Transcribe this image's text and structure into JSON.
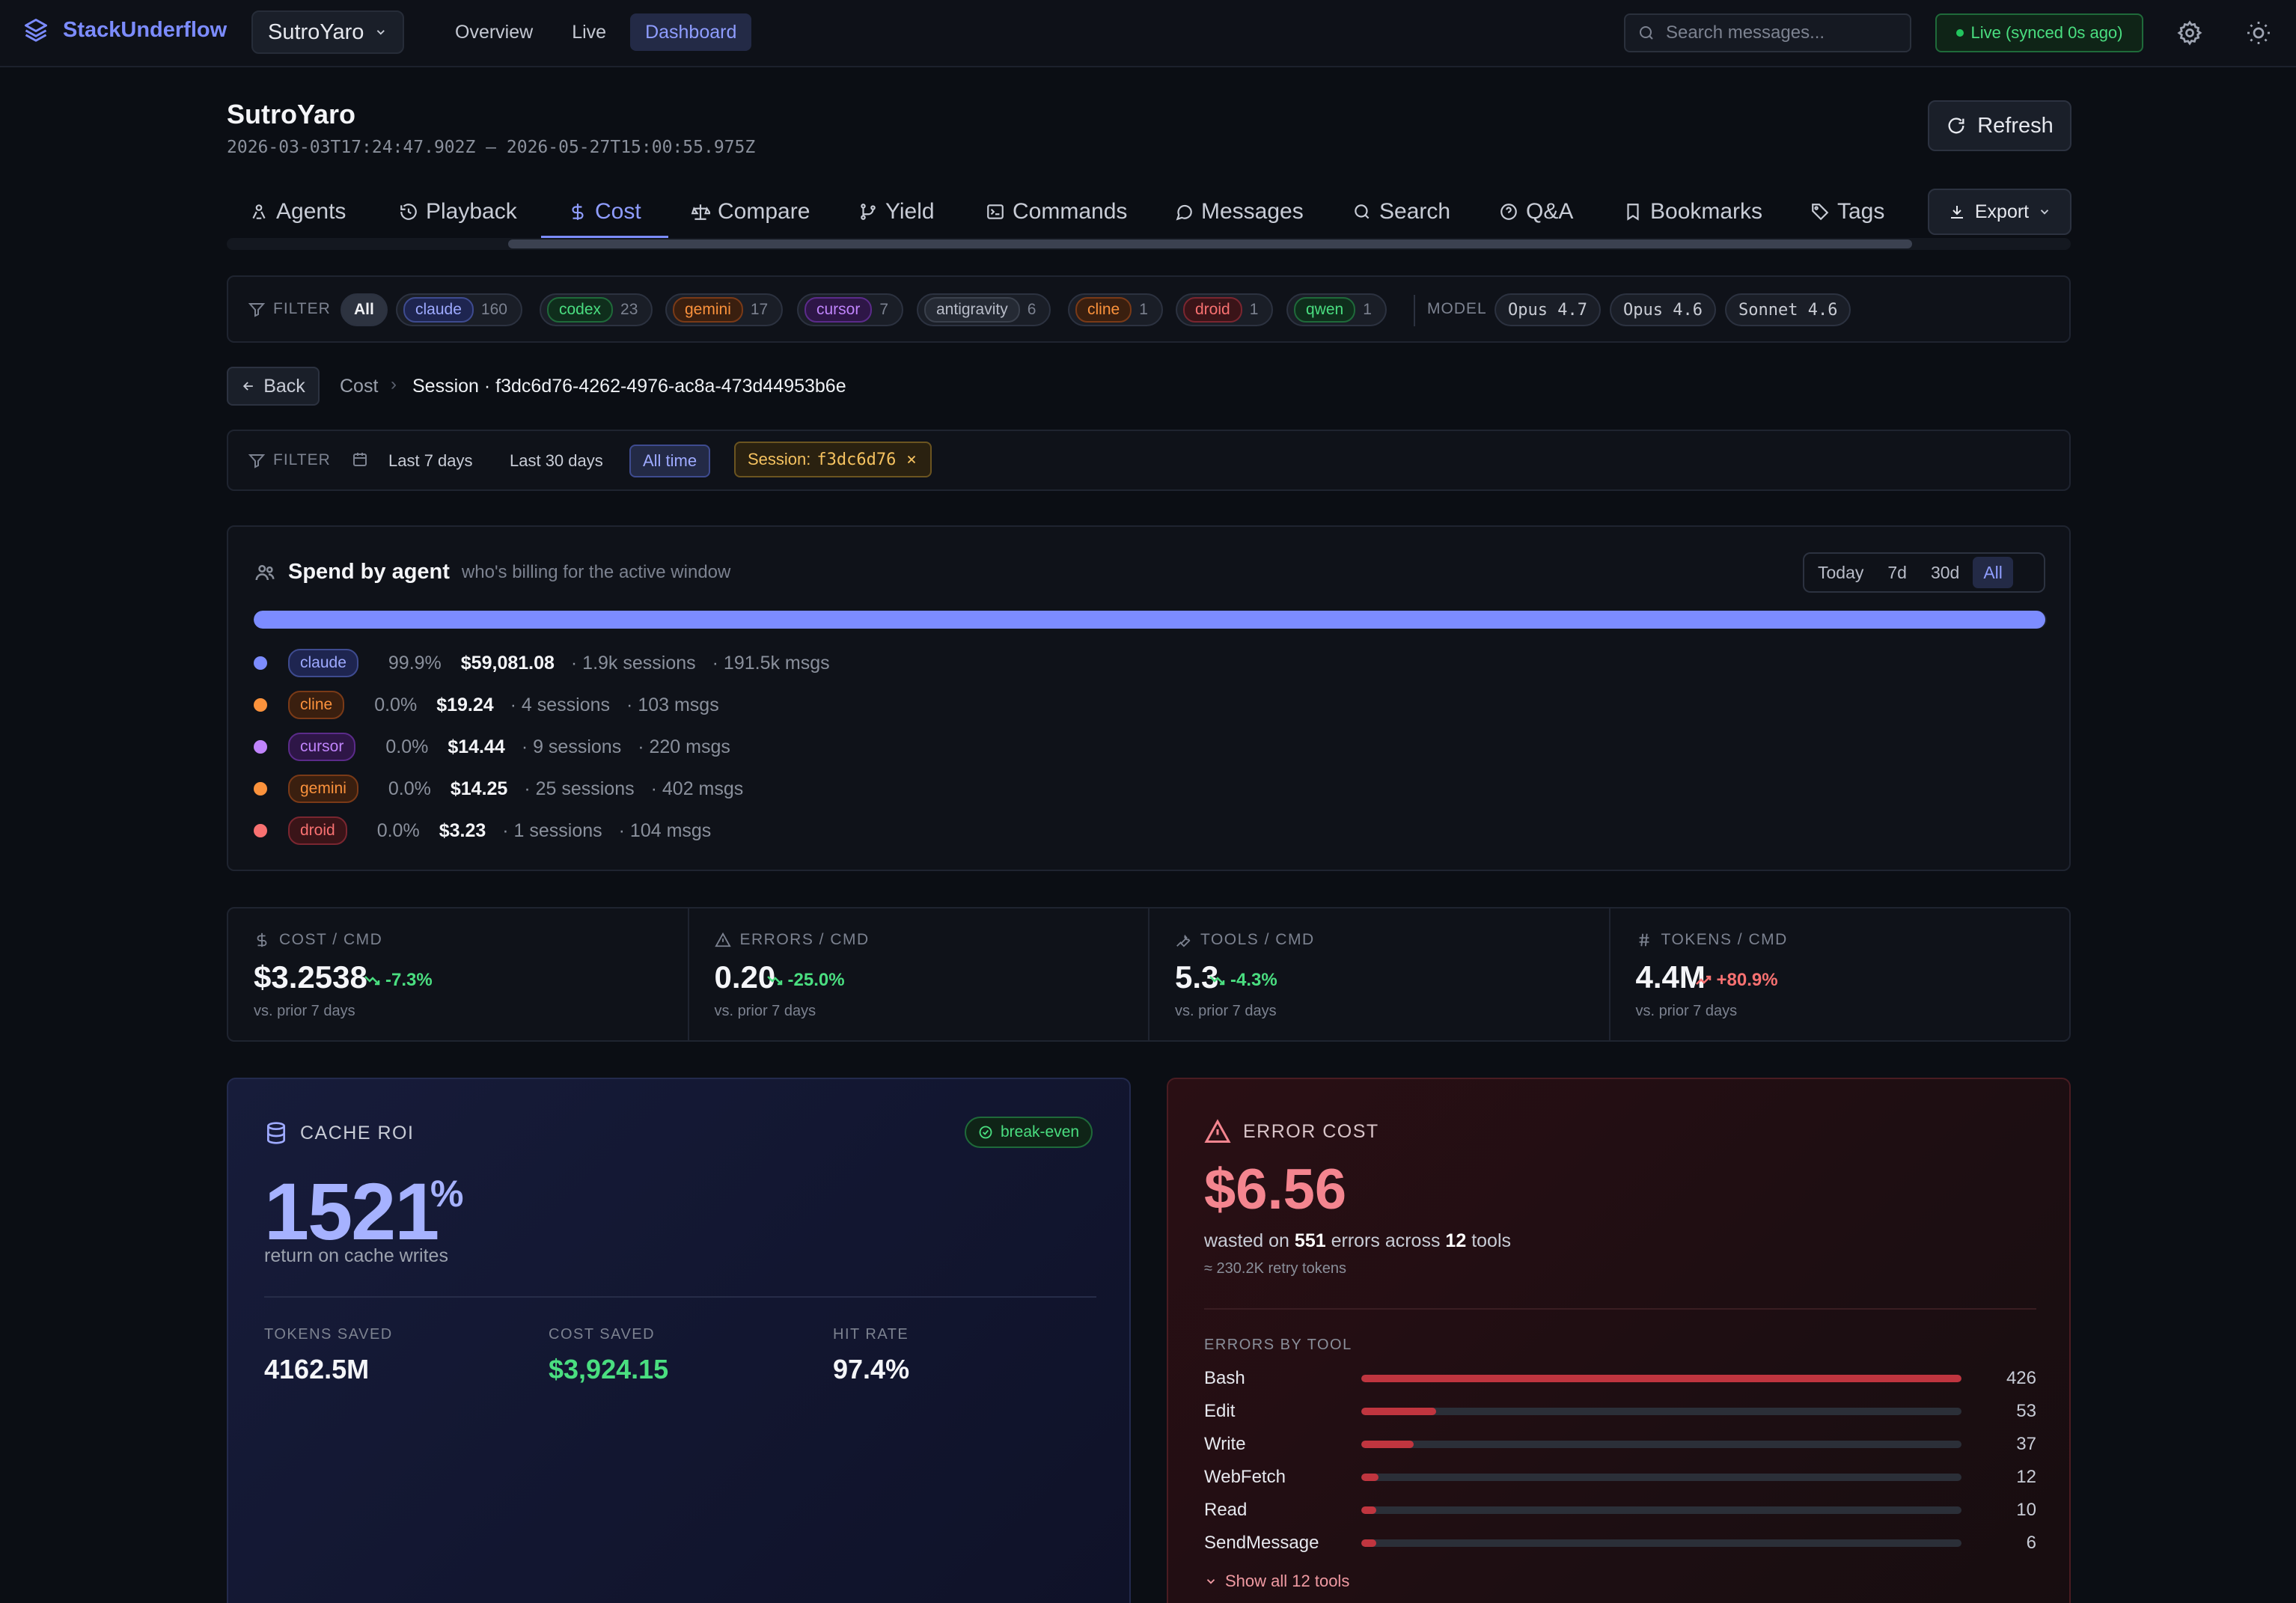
{
  "app": {
    "brand": "StackUnderflow",
    "workspace": "SutroYaro",
    "nav": [
      "Overview",
      "Live",
      "Dashboard"
    ],
    "active_nav": "Dashboard",
    "search_placeholder": "Search messages...",
    "live_status": "Live (synced 0s ago)"
  },
  "page": {
    "title": "SutroYaro",
    "date_range": "2026-03-03T17:24:47.902Z — 2026-05-27T15:00:55.975Z",
    "refresh_label": "Refresh",
    "export_label": "Export",
    "tabs": [
      {
        "label": "Agents",
        "icon": "agents-icon"
      },
      {
        "label": "Playback",
        "icon": "history-icon"
      },
      {
        "label": "Cost",
        "icon": "dollar-icon"
      },
      {
        "label": "Compare",
        "icon": "scale-icon"
      },
      {
        "label": "Yield",
        "icon": "branch-icon"
      },
      {
        "label": "Commands",
        "icon": "terminal-icon"
      },
      {
        "label": "Messages",
        "icon": "chat-icon"
      },
      {
        "label": "Search",
        "icon": "search-icon"
      },
      {
        "label": "Q&A",
        "icon": "question-icon"
      },
      {
        "label": "Bookmarks",
        "icon": "bookmark-icon"
      },
      {
        "label": "Tags",
        "icon": "tag-icon"
      }
    ],
    "active_tab": "Cost"
  },
  "agent_filter": {
    "label": "FILTER",
    "all_label": "All",
    "agents": [
      {
        "name": "claude",
        "count": "160",
        "color": "#7c8cff"
      },
      {
        "name": "codex",
        "count": "23",
        "color": "#4ade80"
      },
      {
        "name": "gemini",
        "count": "17",
        "color": "#fb923c"
      },
      {
        "name": "cursor",
        "count": "7",
        "color": "#c084fc"
      },
      {
        "name": "antigravity",
        "count": "6",
        "color": "#a0a6b4"
      },
      {
        "name": "cline",
        "count": "1",
        "color": "#fb923c"
      },
      {
        "name": "droid",
        "count": "1",
        "color": "#f87171"
      },
      {
        "name": "qwen",
        "count": "1",
        "color": "#4ade80"
      }
    ],
    "model_label": "MODEL",
    "models": [
      "Opus 4.7",
      "Opus 4.6",
      "Sonnet 4.6"
    ]
  },
  "breadcrumb": {
    "back_label": "Back",
    "parent": "Cost",
    "current": "Session · f3dc6d76-4262-4976-ac8a-473d44953b6e"
  },
  "time_filter": {
    "label": "FILTER",
    "ranges": [
      "Last 7 days",
      "Last 30 days",
      "All time"
    ],
    "active_range": "All time",
    "session_chip_label": "Session:",
    "session_chip_value": "f3dc6d76"
  },
  "spend": {
    "title": "Spend by agent",
    "subtitle": "who's billing for the active window",
    "periods": [
      "Today",
      "7d",
      "30d",
      "All"
    ],
    "active_period": "All",
    "bar_fraction": 0.999,
    "rows": [
      {
        "agent": "claude",
        "pct": "99.9%",
        "amount": "$59,081.08",
        "sessions": "· 1.9k sessions",
        "msgs": "· 191.5k msgs",
        "color": "#7c8cff"
      },
      {
        "agent": "cline",
        "pct": "0.0%",
        "amount": "$19.24",
        "sessions": "· 4 sessions",
        "msgs": "· 103 msgs",
        "color": "#fb923c"
      },
      {
        "agent": "cursor",
        "pct": "0.0%",
        "amount": "$14.44",
        "sessions": "· 9 sessions",
        "msgs": "· 220 msgs",
        "color": "#c084fc"
      },
      {
        "agent": "gemini",
        "pct": "0.0%",
        "amount": "$14.25",
        "sessions": "· 25 sessions",
        "msgs": "· 402 msgs",
        "color": "#fb923c"
      },
      {
        "agent": "droid",
        "pct": "0.0%",
        "amount": "$3.23",
        "sessions": "· 1 sessions",
        "msgs": "· 104 msgs",
        "color": "#f87171"
      }
    ]
  },
  "kpis": [
    {
      "label": "COST / CMD",
      "icon": "dollar-icon",
      "value": "$3.2538",
      "delta": "-7.3%",
      "trend": "down",
      "sub": "vs. prior 7 days",
      "delta_color": "#4ade80"
    },
    {
      "label": "ERRORS / CMD",
      "icon": "warning-icon",
      "value": "0.20",
      "delta": "-25.0%",
      "trend": "down",
      "sub": "vs. prior 7 days",
      "delta_color": "#4ade80"
    },
    {
      "label": "TOOLS / CMD",
      "icon": "wrench-icon",
      "value": "5.3",
      "delta": "-4.3%",
      "trend": "down",
      "sub": "vs. prior 7 days",
      "delta_color": "#4ade80"
    },
    {
      "label": "TOKENS / CMD",
      "icon": "hash-icon",
      "value": "4.4M",
      "delta": "+80.9%",
      "trend": "up",
      "sub": "vs. prior 7 days",
      "delta_color": "#f87171"
    }
  ],
  "cache_roi": {
    "title": "CACHE ROI",
    "badge": "break-even",
    "value": "1521",
    "unit": "%",
    "description": "return on cache writes",
    "stats": [
      {
        "label": "TOKENS SAVED",
        "value": "4162.5M",
        "color": "#f4f5f8"
      },
      {
        "label": "COST SAVED",
        "value": "$3,924.15",
        "color": "#4ade80"
      },
      {
        "label": "HIT RATE",
        "value": "97.4%",
        "color": "#f4f5f8"
      }
    ]
  },
  "error_cost": {
    "title": "ERROR COST",
    "value": "$6.56",
    "line_prefix": "wasted on",
    "errors": "551",
    "line_mid": "errors across",
    "tools": "12",
    "line_suffix": "tools",
    "retry_tokens": "≈ 230.2K retry tokens",
    "section_label": "ERRORS BY TOOL",
    "rows": [
      {
        "tool": "Bash",
        "count": 426
      },
      {
        "tool": "Edit",
        "count": 53
      },
      {
        "tool": "Write",
        "count": 37
      },
      {
        "tool": "WebFetch",
        "count": 12
      },
      {
        "tool": "Read",
        "count": 10
      },
      {
        "tool": "SendMessage",
        "count": 6
      }
    ],
    "show_all_label": "Show all 12 tools"
  }
}
